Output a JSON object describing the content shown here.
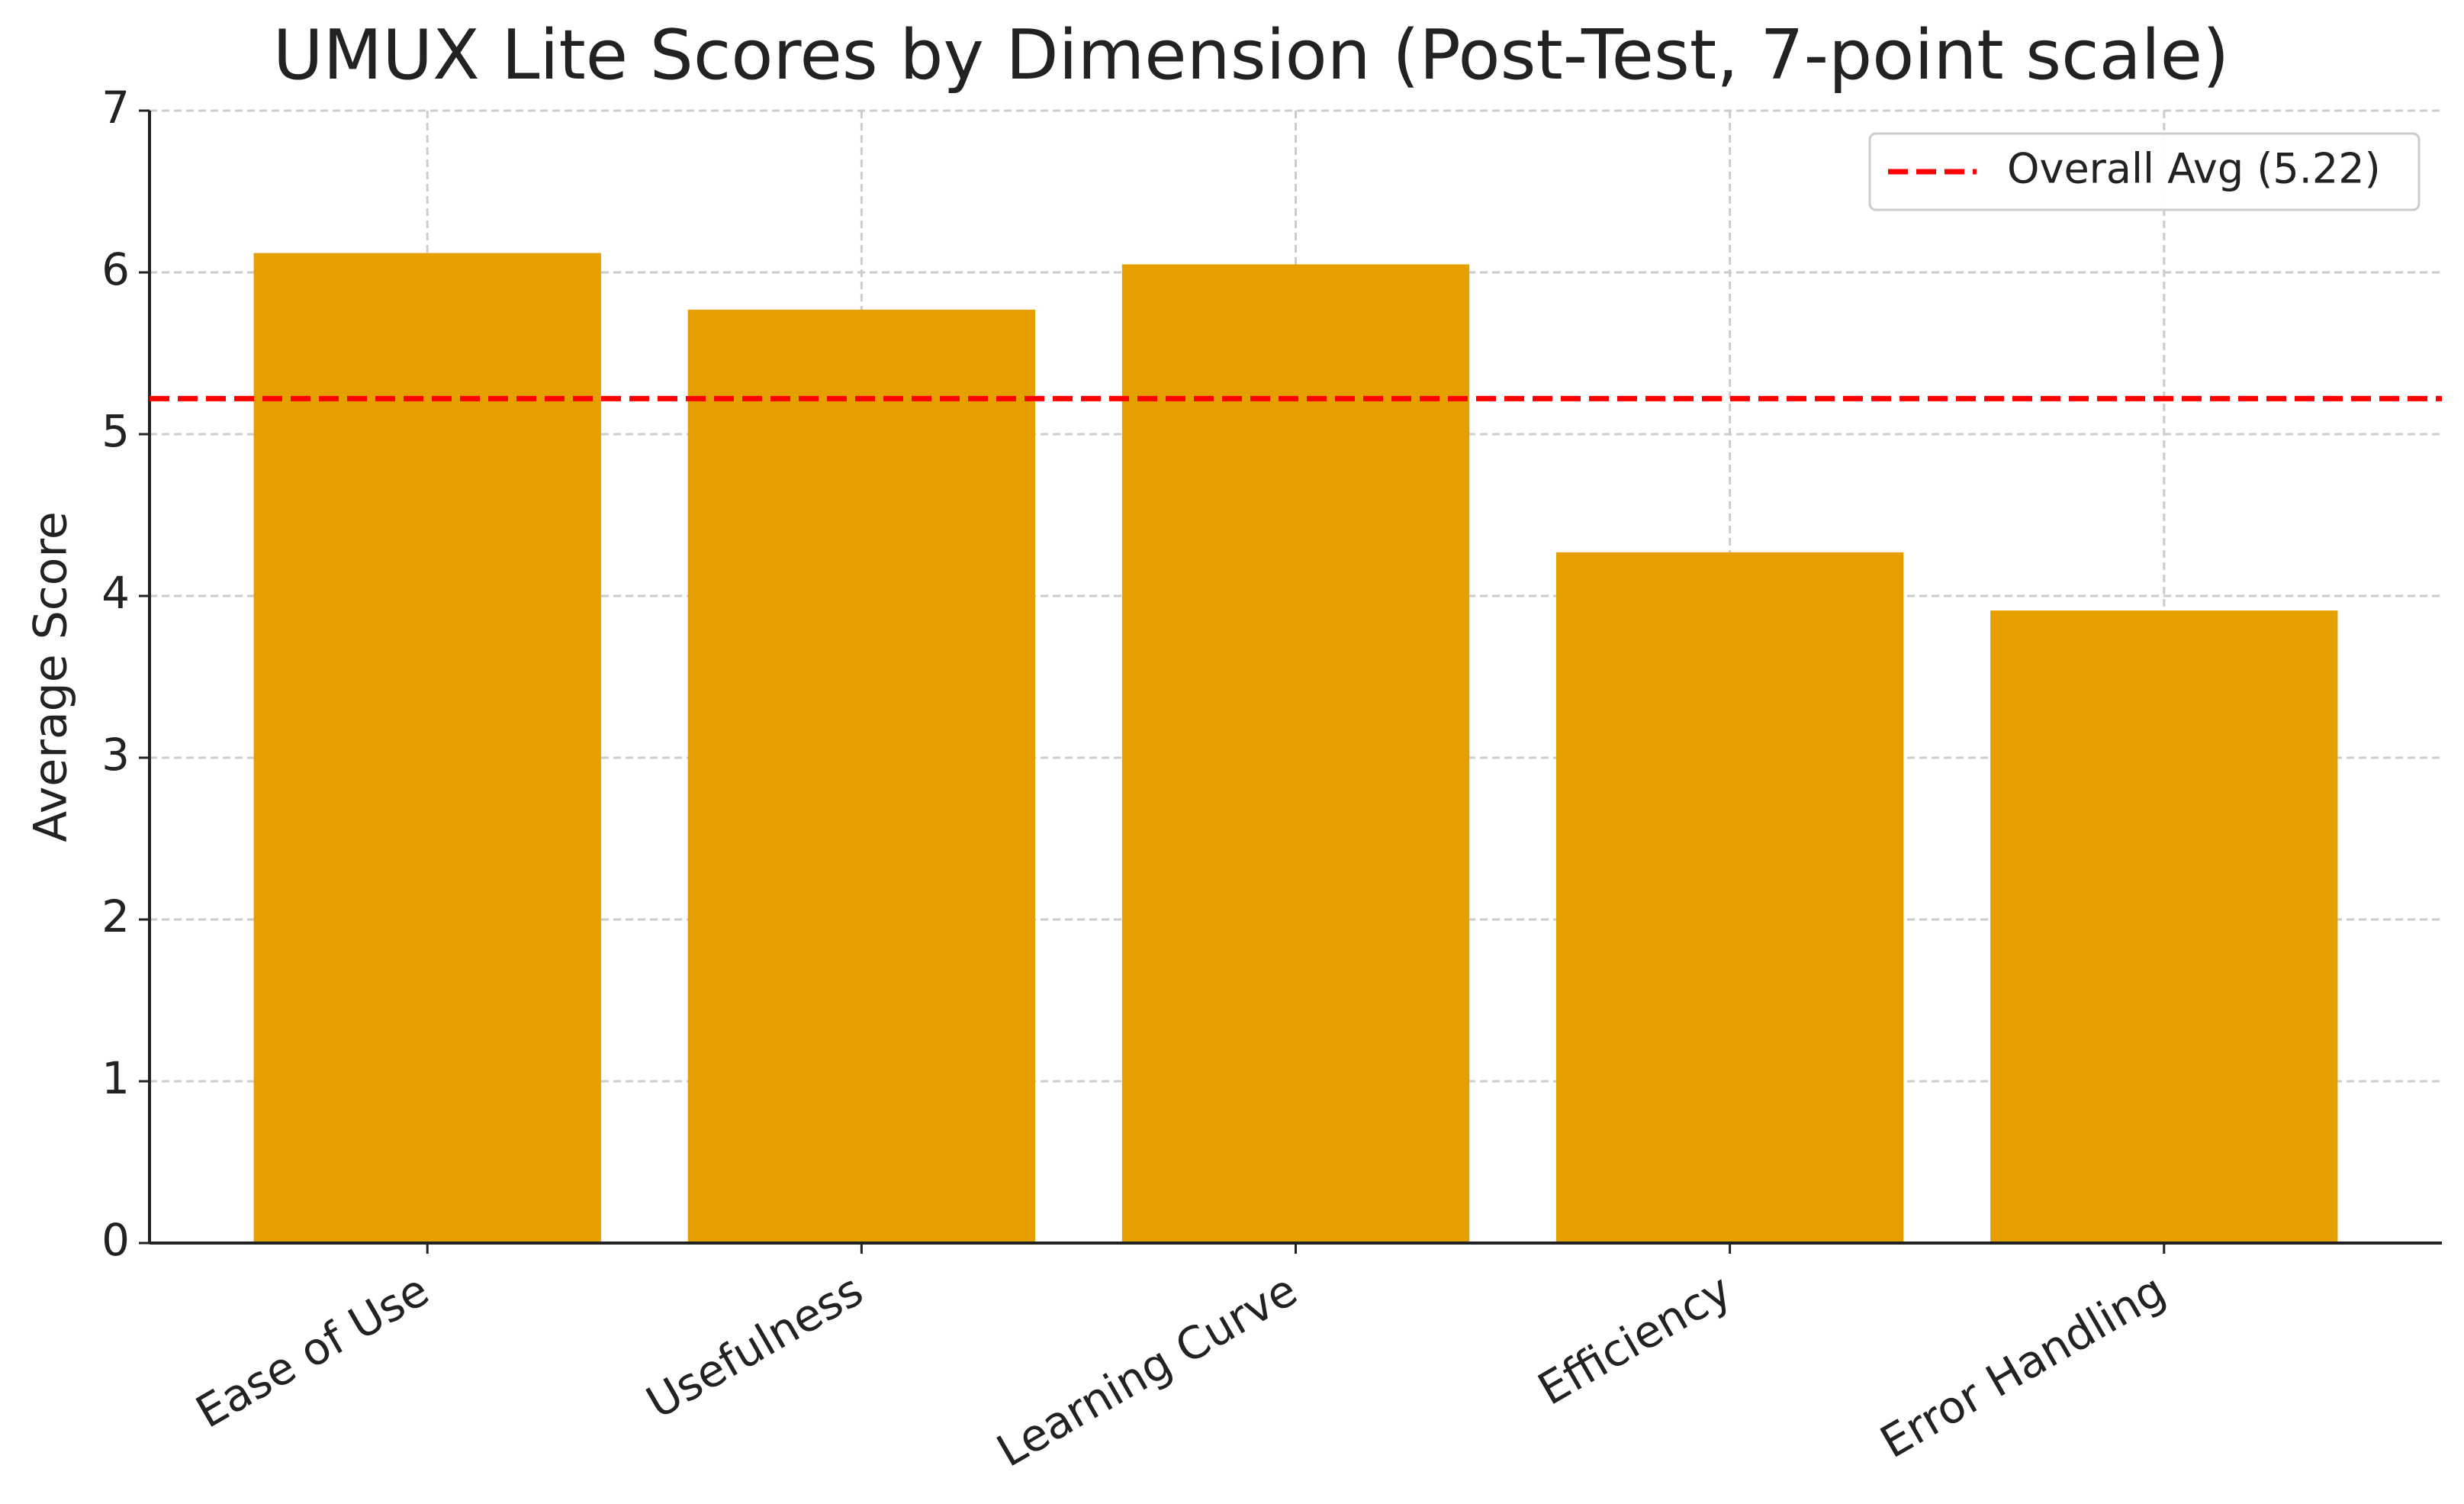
{
  "chart_data": {
    "type": "bar",
    "title": "UMUX Lite Scores by Dimension (Post-Test, 7-point scale)",
    "y_label": "Average Score",
    "categories": [
      "Ease of Use",
      "Usefulness",
      "Learning Curve",
      "Efficiency",
      "Error Handling"
    ],
    "values": [
      6.12,
      5.77,
      6.05,
      4.27,
      3.91
    ],
    "color": "#e5a000",
    "ylim": [
      0,
      7
    ],
    "yticks": [
      0,
      1,
      2,
      3,
      4,
      5,
      6,
      7
    ],
    "grid": true,
    "reference_line": {
      "value": 5.22,
      "label": "Overall Avg (5.22)",
      "color": "#ff0000"
    },
    "legend": "upper right"
  }
}
